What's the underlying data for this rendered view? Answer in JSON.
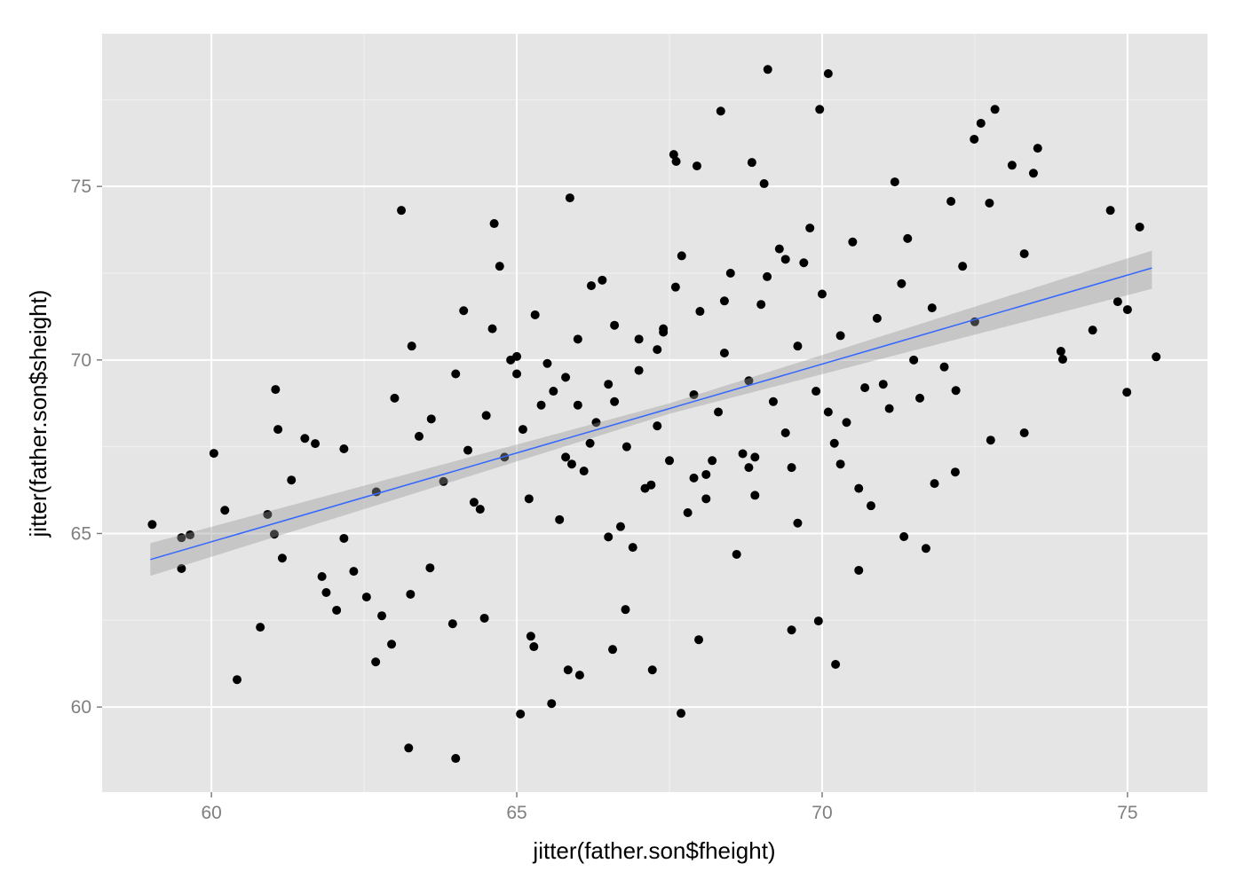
{
  "chart_data": {
    "type": "scatter",
    "x_label": "jitter(father.son$fheight)",
    "y_label": "jitter(father.son$sheight)",
    "xlim": [
      58.21,
      76.31
    ],
    "ylim": [
      57.55,
      79.4
    ],
    "xticks": [
      60,
      65,
      70,
      75
    ],
    "yticks": [
      60,
      65,
      70,
      75
    ],
    "xminor": [
      62.5,
      67.5,
      72.5
    ],
    "yminor": [
      62.5,
      67.5,
      72.5,
      77.5
    ],
    "grid": true,
    "series": [
      {
        "color": "#000000",
        "x": [
          59.03,
          59.51,
          59.51,
          59.65,
          60.04,
          60.22,
          60.42,
          60.8,
          60.92,
          61.03,
          61.05,
          61.09,
          61.16,
          61.31,
          61.53,
          61.7,
          61.81,
          61.88,
          62.05,
          62.17,
          62.17,
          62.33,
          62.54,
          62.69,
          62.79,
          62.95,
          63.11,
          63.23,
          63.28,
          63.26,
          63.58,
          63.95,
          64.0,
          64.13,
          64.47,
          64.63,
          64.72,
          65.06,
          65.23,
          65.28,
          65.57,
          65.87,
          65.84,
          66.03,
          66.22,
          66.57,
          66.78,
          67.22,
          67.57,
          67.61,
          67.69,
          67.95,
          67.98,
          68.34,
          68.85,
          69.05,
          69.11,
          69.5,
          69.94,
          69.96,
          70.1,
          70.22,
          70.6,
          71.19,
          71.34,
          71.7,
          72.49,
          72.6,
          72.83,
          73.11,
          73.46,
          73.53,
          73.91,
          73.94,
          74.43,
          74.72,
          74.84,
          74.99,
          75.0,
          75.2,
          75.47,
          73.31,
          73.31,
          72.76,
          72.19,
          72.74,
          72.11,
          72.18,
          71.84,
          62.7,
          63.0,
          63.4,
          63.8,
          64.0,
          64.3,
          64.5,
          64.8,
          65.0,
          65.2,
          65.4,
          65.5,
          65.7,
          65.9,
          66.0,
          66.1,
          66.3,
          66.5,
          66.6,
          66.8,
          66.9,
          67.0,
          67.1,
          67.3,
          67.4,
          67.5,
          67.6,
          67.8,
          67.9,
          68.0,
          68.1,
          68.3,
          68.4,
          68.5,
          68.7,
          68.8,
          68.9,
          69.0,
          69.2,
          69.3,
          69.4,
          69.6,
          69.7,
          69.9,
          70.0,
          70.2,
          70.3,
          70.5,
          70.7,
          70.9,
          71.1,
          71.3,
          71.5,
          71.8,
          72.0,
          72.3,
          72.5,
          63.6,
          64.2,
          64.6,
          65.1,
          65.3,
          65.8,
          66.2,
          66.4,
          66.7,
          67.0,
          67.2,
          67.7,
          68.2,
          68.6,
          69.1,
          69.5,
          69.8,
          70.4,
          70.8,
          71.4,
          64.4,
          64.9,
          65.6,
          66.0,
          66.5,
          67.3,
          67.9,
          68.4,
          68.9,
          69.4,
          70.1,
          70.6,
          71.0,
          71.6,
          65.0,
          65.8,
          66.6,
          67.4,
          68.1,
          68.8,
          69.6,
          70.3
        ],
        "values": [
          65.26,
          64.88,
          63.99,
          64.96,
          67.31,
          65.67,
          60.79,
          62.3,
          65.55,
          64.98,
          69.15,
          68.0,
          64.29,
          66.54,
          67.74,
          67.59,
          63.76,
          63.3,
          62.79,
          67.44,
          64.86,
          63.91,
          63.17,
          61.3,
          62.63,
          61.81,
          74.31,
          58.82,
          70.4,
          63.25,
          64.01,
          62.4,
          58.52,
          71.42,
          62.56,
          73.93,
          72.7,
          59.8,
          62.04,
          61.74,
          60.1,
          74.67,
          61.07,
          60.92,
          72.14,
          61.66,
          62.81,
          61.07,
          75.92,
          75.72,
          59.82,
          75.59,
          61.94,
          77.17,
          75.69,
          75.08,
          78.37,
          62.22,
          62.48,
          77.22,
          78.25,
          61.23,
          63.94,
          75.13,
          64.91,
          64.57,
          76.36,
          76.82,
          77.22,
          75.61,
          75.38,
          76.1,
          70.25,
          70.02,
          70.86,
          74.31,
          71.68,
          69.07,
          71.45,
          73.83,
          70.09,
          73.06,
          67.9,
          67.69,
          69.12,
          74.52,
          74.57,
          66.77,
          66.44,
          66.2,
          68.9,
          67.8,
          66.5,
          69.6,
          65.9,
          68.4,
          67.2,
          70.1,
          66.0,
          68.7,
          69.9,
          65.4,
          67.0,
          70.6,
          66.8,
          68.2,
          69.3,
          71.0,
          67.5,
          64.6,
          69.7,
          66.3,
          68.1,
          70.8,
          67.1,
          72.1,
          65.6,
          69.0,
          71.4,
          66.7,
          68.5,
          70.2,
          72.5,
          67.3,
          69.4,
          66.1,
          71.6,
          68.8,
          73.2,
          67.9,
          70.4,
          72.8,
          69.1,
          71.9,
          67.6,
          70.7,
          73.4,
          69.2,
          71.2,
          68.6,
          72.2,
          70.0,
          71.5,
          69.8,
          72.7,
          71.1,
          68.3,
          67.4,
          70.9,
          68.0,
          71.3,
          69.5,
          67.6,
          72.3,
          65.2,
          70.6,
          66.4,
          73.0,
          67.1,
          64.4,
          72.4,
          66.9,
          73.8,
          68.2,
          65.8,
          73.5,
          65.7,
          70.0,
          69.1,
          68.7,
          64.9,
          70.3,
          66.6,
          71.7,
          67.2,
          72.9,
          68.5,
          66.3,
          69.3,
          68.9,
          69.6,
          67.2,
          68.8,
          70.9,
          66.0,
          66.9,
          65.3,
          67.0
        ]
      }
    ],
    "fit": {
      "color": "#3366ff",
      "band_color": "#999999",
      "x": [
        59.0,
        67.5,
        75.4
      ],
      "values": [
        64.25,
        68.6,
        72.65
      ],
      "lower": [
        63.78,
        68.45,
        72.05
      ],
      "upper": [
        64.72,
        68.75,
        73.15
      ]
    }
  }
}
